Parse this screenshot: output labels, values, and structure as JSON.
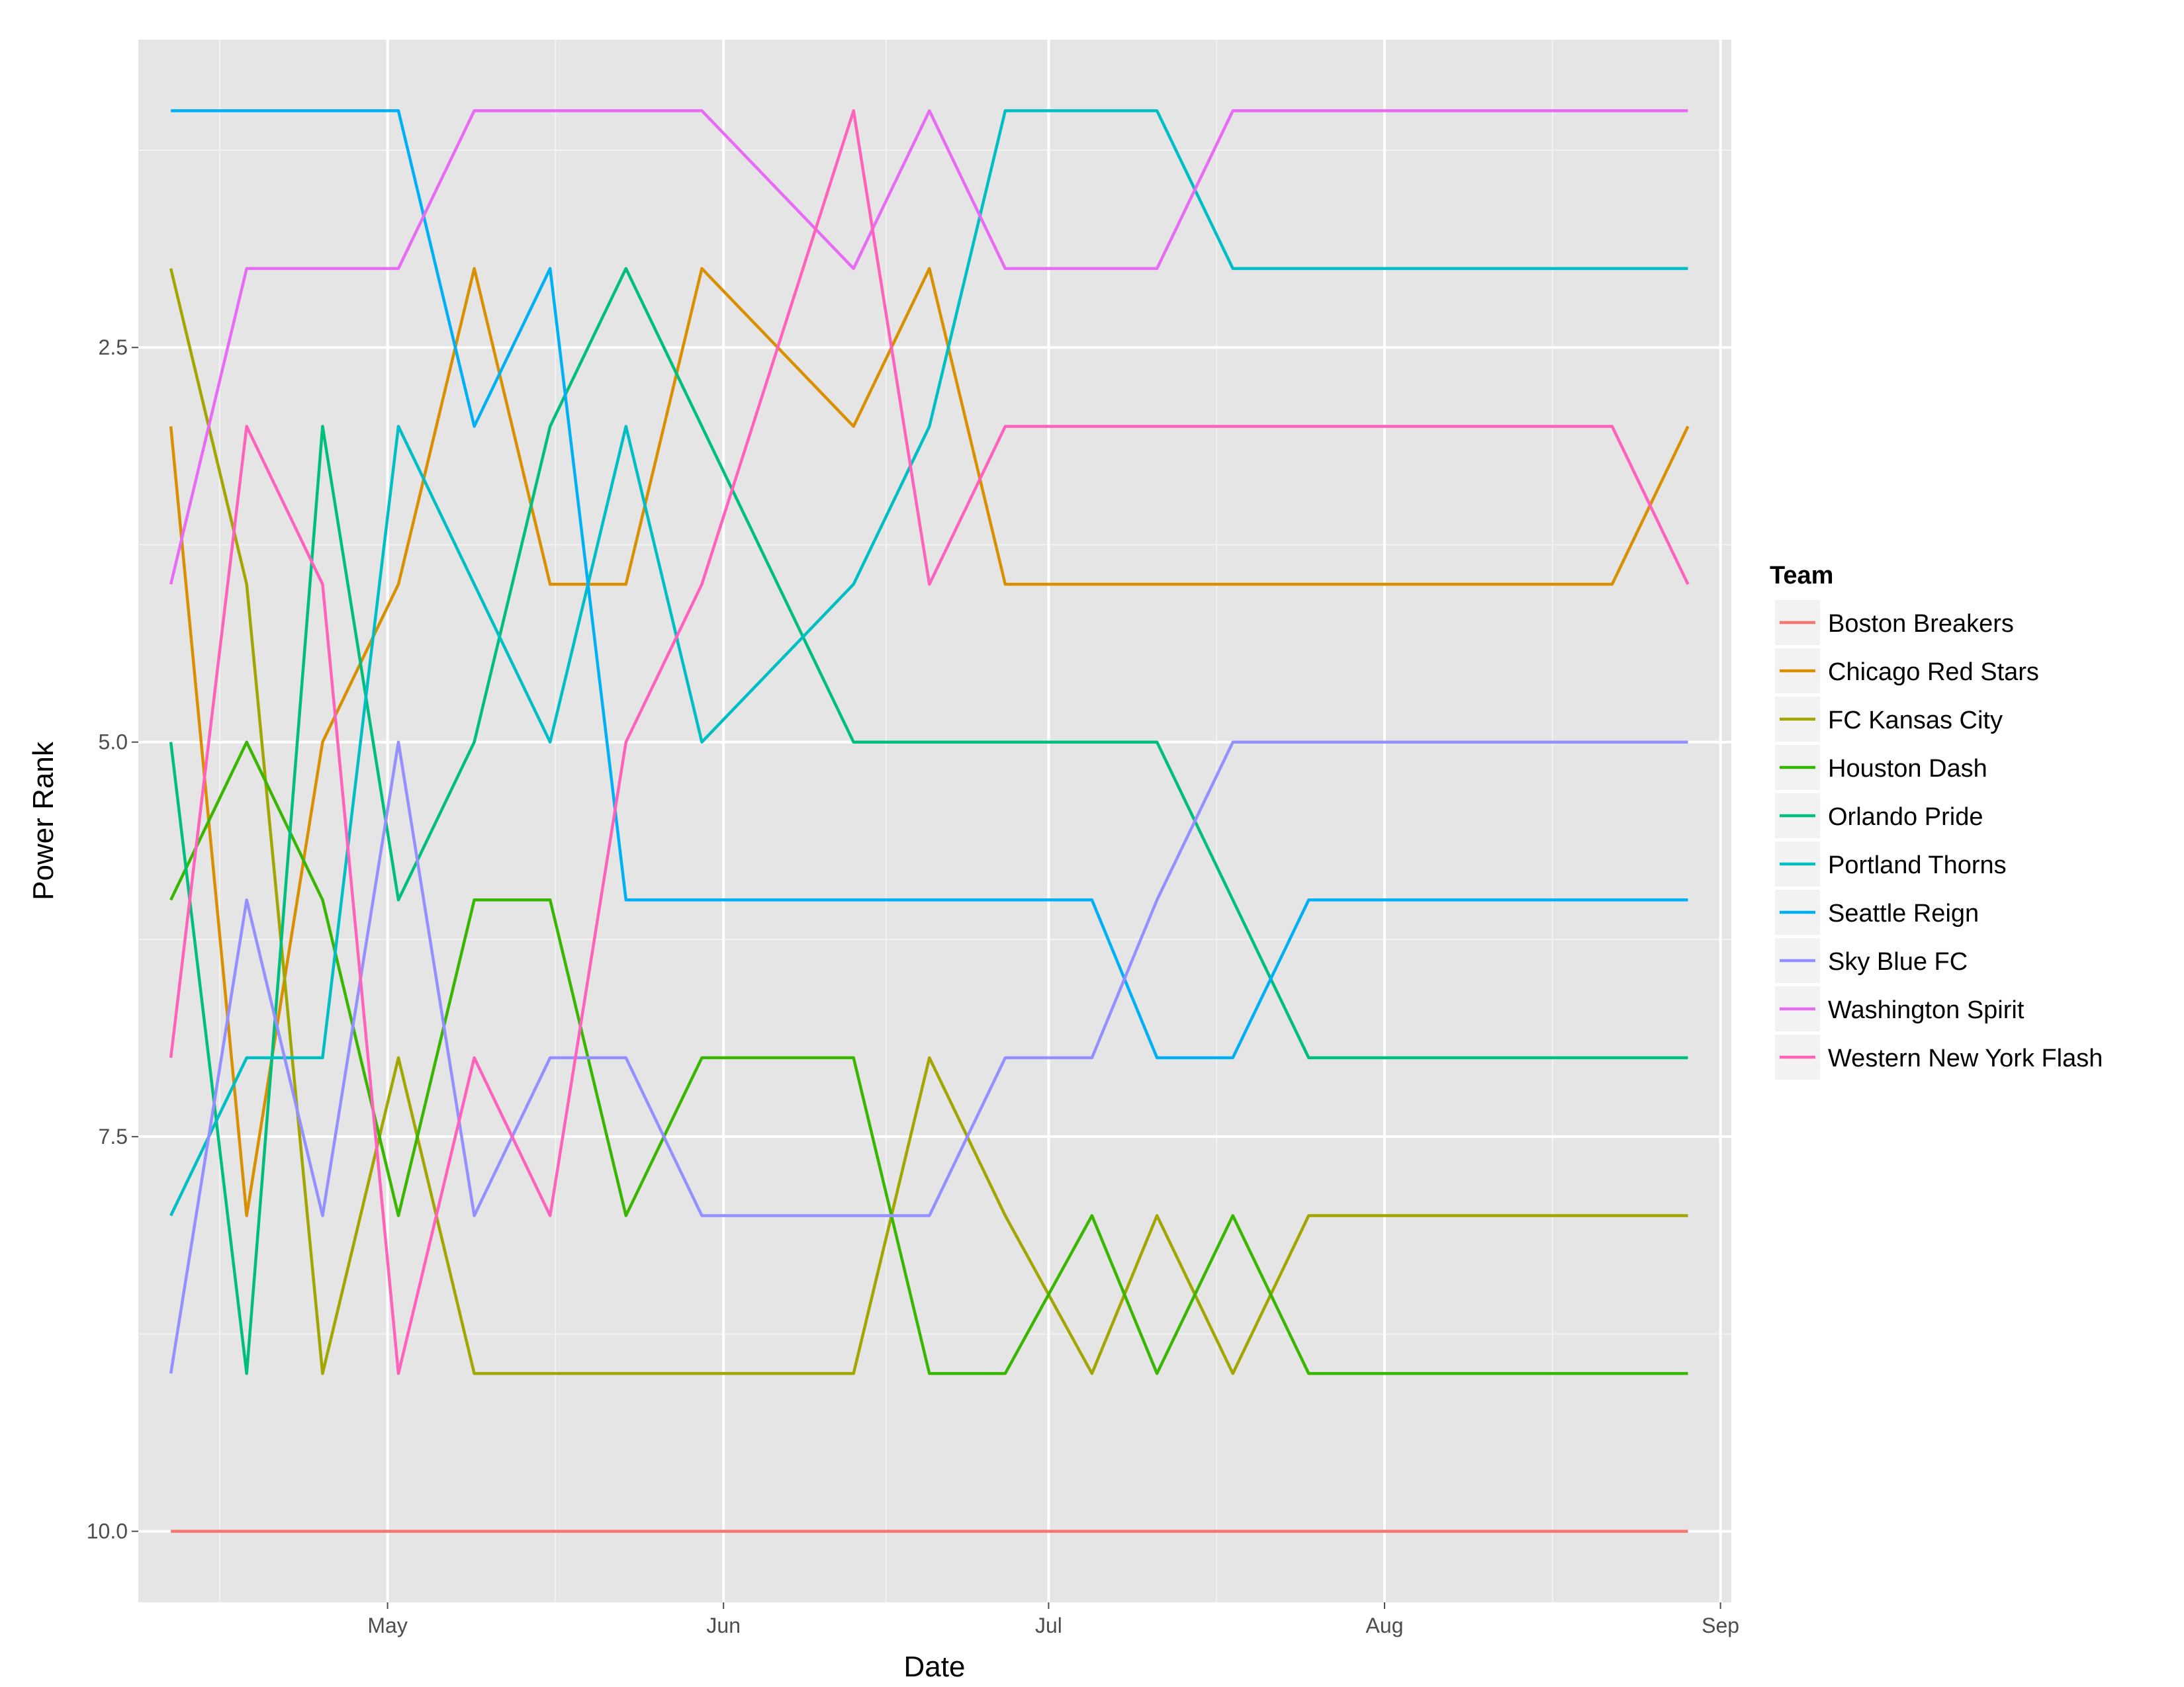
{
  "chart_data": {
    "type": "line",
    "title": "",
    "xlabel": "Date",
    "ylabel": "Power Rank",
    "y_reversed": true,
    "ylim": [
      0.55,
      10.45
    ],
    "xlim": [
      "2016-04-08",
      "2016-09-02"
    ],
    "grid": true,
    "legend_title": "Team",
    "legend_position": "right",
    "x_ticks": [
      {
        "date": "2016-05-01",
        "label": "May"
      },
      {
        "date": "2016-06-01",
        "label": "Jun"
      },
      {
        "date": "2016-07-01",
        "label": "Jul"
      },
      {
        "date": "2016-08-01",
        "label": "Aug"
      },
      {
        "date": "2016-09-01",
        "label": "Sep"
      }
    ],
    "y_ticks": [
      {
        "value": 2.5,
        "label": "2.5"
      },
      {
        "value": 5,
        "label": "5.0"
      },
      {
        "value": 7.5,
        "label": "7.5"
      },
      {
        "value": 10,
        "label": "10.0"
      }
    ],
    "x": [
      "2016-04-11",
      "2016-04-18",
      "2016-04-25",
      "2016-05-02",
      "2016-05-09",
      "2016-05-16",
      "2016-05-23",
      "2016-05-30",
      "2016-06-13",
      "2016-06-20",
      "2016-06-27",
      "2016-07-05",
      "2016-07-11",
      "2016-07-18",
      "2016-07-25",
      "2016-08-22",
      "2016-08-29"
    ],
    "series": [
      {
        "name": "Boston Breakers",
        "color": "#F8766D",
        "values": [
          10,
          10,
          10,
          10,
          10,
          10,
          10,
          10,
          10,
          10,
          10,
          10,
          10,
          10,
          10,
          10,
          10
        ]
      },
      {
        "name": "Chicago Red Stars",
        "color": "#D89000",
        "values": [
          3,
          8,
          5,
          4,
          2,
          4,
          4,
          2,
          3,
          2,
          4,
          4,
          4,
          4,
          4,
          4,
          3
        ]
      },
      {
        "name": "FC Kansas City",
        "color": "#A3A500",
        "values": [
          2,
          4,
          9,
          7,
          9,
          9,
          9,
          9,
          9,
          7,
          8,
          9,
          8,
          9,
          8,
          8,
          8
        ]
      },
      {
        "name": "Houston Dash",
        "color": "#39B600",
        "values": [
          6,
          5,
          6,
          8,
          6,
          6,
          8,
          7,
          7,
          9,
          9,
          8,
          9,
          8,
          9,
          9,
          9
        ]
      },
      {
        "name": "Orlando Pride",
        "color": "#00BF7D",
        "values": [
          5,
          9,
          3,
          6,
          5,
          3,
          2,
          3,
          5,
          5,
          5,
          5,
          5,
          6,
          7,
          7,
          7
        ]
      },
      {
        "name": "Portland Thorns",
        "color": "#00BFC4",
        "values": [
          8,
          7,
          7,
          3,
          4,
          5,
          3,
          5,
          4,
          3,
          1,
          1,
          1,
          2,
          2,
          2,
          2
        ]
      },
      {
        "name": "Seattle Reign",
        "color": "#00B0F6",
        "values": [
          1,
          1,
          1,
          1,
          3,
          2,
          6,
          6,
          6,
          6,
          6,
          6,
          7,
          7,
          6,
          6,
          6
        ]
      },
      {
        "name": "Sky Blue FC",
        "color": "#9590FF",
        "values": [
          9,
          6,
          8,
          5,
          8,
          7,
          7,
          8,
          8,
          8,
          7,
          7,
          6,
          5,
          5,
          5,
          5
        ]
      },
      {
        "name": "Washington Spirit",
        "color": "#E76BF3",
        "values": [
          4,
          2,
          2,
          2,
          1,
          1,
          1,
          1,
          2,
          1,
          2,
          2,
          2,
          1,
          1,
          1,
          1
        ]
      },
      {
        "name": "Western New York Flash",
        "color": "#FF62BC",
        "values": [
          7,
          3,
          4,
          9,
          7,
          8,
          5,
          4,
          1,
          4,
          3,
          3,
          3,
          3,
          3,
          3,
          4
        ]
      }
    ]
  }
}
